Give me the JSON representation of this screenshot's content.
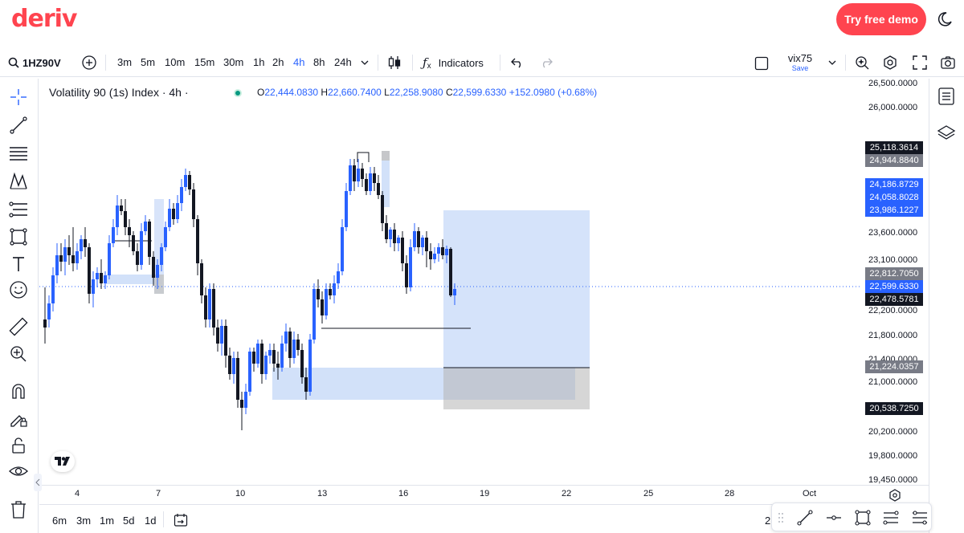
{
  "header": {
    "logo": "deriv",
    "demo_button": "Try free demo"
  },
  "toolbar": {
    "symbol": "1HZ90V",
    "intervals": [
      "3m",
      "5m",
      "10m",
      "15m",
      "30m",
      "1h",
      "2h",
      "4h",
      "8h",
      "24h"
    ],
    "active_interval": "4h",
    "indicators_label": "Indicators",
    "layout_name": "vix75",
    "layout_save": "Save"
  },
  "legend": {
    "title": "Volatility 90 (1s) Index · 4h ·",
    "o_label": "O",
    "o_value": "22,444.0830",
    "h_label": "H",
    "h_value": "22,660.7400",
    "l_label": "L",
    "l_value": "22,258.9080",
    "c_label": "C",
    "c_value": "22,599.6330",
    "change": "+152.0980 (+0.68%)"
  },
  "price_axis": {
    "ticks": [
      {
        "label": "26,500.0000",
        "value": 26500
      },
      {
        "label": "26,000.0000",
        "value": 26000
      },
      {
        "label": "23,600.0000",
        "value": 23600
      },
      {
        "label": "23,100.0000",
        "value": 23100
      },
      {
        "label": "22,200.0000",
        "value": 22200
      },
      {
        "label": "21,800.0000",
        "value": 21800
      },
      {
        "label": "21,400.0000",
        "value": 21400
      },
      {
        "label": "21,000.0000",
        "value": 21000
      },
      {
        "label": "20,200.0000",
        "value": 20200
      },
      {
        "label": "19,800.0000",
        "value": 19800
      },
      {
        "label": "19,450.0000",
        "value": 19450
      }
    ],
    "tags": [
      {
        "label": "25,118.3614",
        "color": "#131722"
      },
      {
        "label": "24,944.8840",
        "color": "#787b86"
      },
      {
        "label": "24,186.8729",
        "color": "#2962ff"
      },
      {
        "label": "24,058.8028",
        "color": "#2962ff"
      },
      {
        "label": "23,986.1227",
        "color": "#2962ff"
      },
      {
        "label": "22,812.7050",
        "color": "#787b86"
      },
      {
        "label": "22,599.6330",
        "color": "#2962ff"
      },
      {
        "label": "22,478.5781",
        "color": "#131722"
      },
      {
        "label": "21,224.0357",
        "color": "#787b86"
      },
      {
        "label": "20,538.7250",
        "color": "#131722"
      }
    ]
  },
  "time_axis": {
    "ticks": [
      "4",
      "7",
      "10",
      "13",
      "16",
      "19",
      "22",
      "25",
      "28",
      "Oct"
    ]
  },
  "bottombar": {
    "ranges": [
      "6m",
      "3m",
      "1m",
      "5d",
      "1d"
    ],
    "right_partial": "2"
  },
  "colors": {
    "up": "#2962ff",
    "down": "#131722",
    "accent": "#ff444f",
    "zone": "#c7d9f8"
  },
  "icons": {
    "left_tools": [
      "crosshair-icon",
      "trend-line-icon",
      "fib-icon",
      "pattern-icon",
      "projection-icon",
      "brush-icon",
      "text-icon",
      "emoji-icon",
      "ruler-icon",
      "zoom-in-icon",
      "magnet-icon",
      "lock-draw-icon",
      "lock-icon",
      "eye-icon",
      "trash-icon"
    ]
  }
}
